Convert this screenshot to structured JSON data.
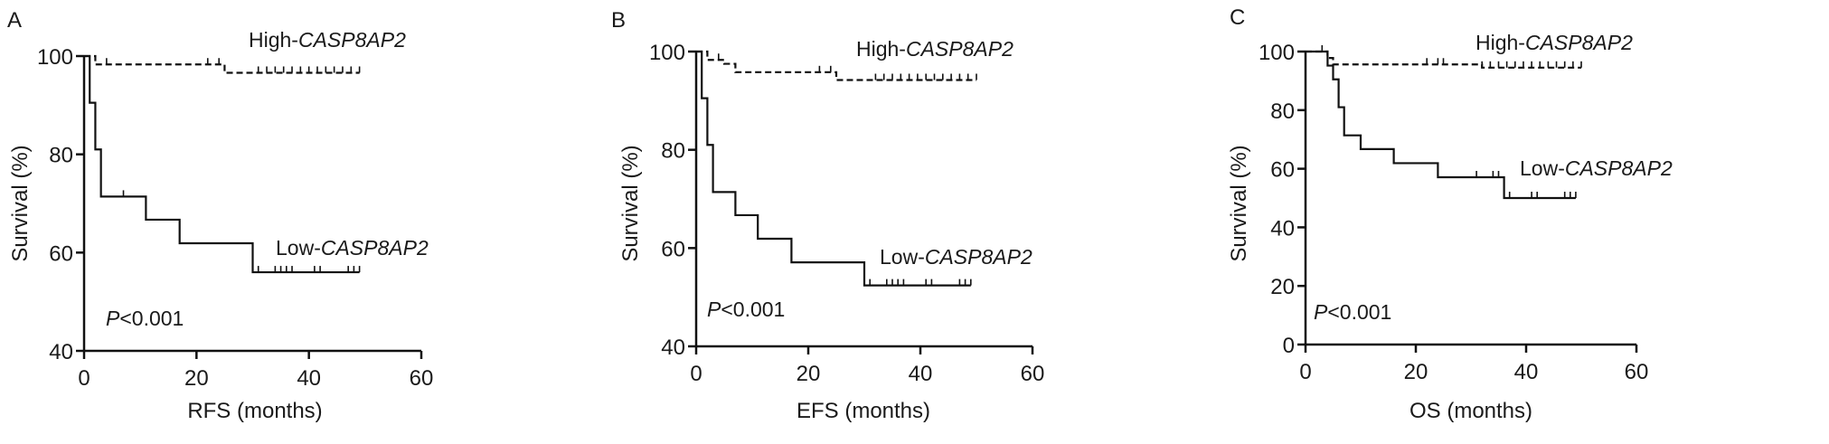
{
  "chart_data": [
    {
      "type": "line",
      "panel_label": "A",
      "xlabel": "RFS (months)",
      "ylabel": "Survival (%)",
      "xlim": [
        0,
        60
      ],
      "ylim": [
        40,
        100
      ],
      "xticks": [
        0,
        20,
        40,
        60
      ],
      "yticks": [
        40,
        60,
        80,
        100
      ],
      "annotation_p": "P",
      "annotation_value": "<0.001",
      "series": [
        {
          "name_prefix": "High-",
          "name_gene": "CASP8AP2",
          "style": "dashed",
          "steps": [
            [
              2,
              98.3
            ],
            [
              25,
              96.6
            ]
          ],
          "end": 49,
          "censored": [
            4,
            22,
            24,
            31,
            32.5,
            34,
            35.5,
            37,
            38.5,
            40,
            41.5,
            43,
            44.5,
            46,
            47.5,
            49
          ]
        },
        {
          "name_prefix": "Low-",
          "name_gene": "CASP8AP2",
          "style": "solid",
          "steps": [
            [
              1,
              90.5
            ],
            [
              2,
              81
            ],
            [
              3,
              71.4
            ],
            [
              11,
              66.7
            ],
            [
              17,
              61.9
            ],
            [
              30,
              56
            ]
          ],
          "end": 49,
          "censored": [
            7,
            31,
            34,
            35,
            36,
            37,
            41,
            42,
            47,
            48,
            49
          ]
        }
      ]
    },
    {
      "type": "line",
      "panel_label": "B",
      "xlabel": "EFS (months)",
      "ylabel": "Survival (%)",
      "xlim": [
        0,
        60
      ],
      "ylim": [
        40,
        100
      ],
      "xticks": [
        0,
        20,
        40,
        60
      ],
      "yticks": [
        40,
        60,
        80,
        100
      ],
      "annotation_p": "P",
      "annotation_value": "<0.001",
      "series": [
        {
          "name_prefix": "High-",
          "name_gene": "CASP8AP2",
          "style": "dashed",
          "steps": [
            [
              2,
              98.3
            ],
            [
              5,
              97.5
            ],
            [
              7,
              95.8
            ],
            [
              25,
              94.2
            ]
          ],
          "end": 50,
          "censored": [
            4,
            22,
            24,
            32,
            33.5,
            35,
            36.5,
            38,
            39.5,
            41,
            42.5,
            44,
            45.5,
            47,
            48.5,
            50
          ]
        },
        {
          "name_prefix": "Low-",
          "name_gene": "CASP8AP2",
          "style": "solid",
          "steps": [
            [
              1,
              90.5
            ],
            [
              2,
              81
            ],
            [
              3,
              71.4
            ],
            [
              7,
              66.7
            ],
            [
              11,
              61.9
            ],
            [
              17,
              57.1
            ],
            [
              30,
              52.4
            ]
          ],
          "end": 49,
          "censored": [
            31,
            34,
            35,
            36,
            37,
            41,
            42,
            47,
            48,
            49
          ]
        }
      ]
    },
    {
      "type": "line",
      "panel_label": "C",
      "xlabel": "OS (months)",
      "ylabel": "Survival (%)",
      "xlim": [
        0,
        60
      ],
      "ylim": [
        0,
        100
      ],
      "xticks": [
        0,
        20,
        40,
        60
      ],
      "yticks": [
        0,
        20,
        40,
        60,
        80,
        100
      ],
      "annotation_p": "P",
      "annotation_value": "<0.001",
      "series": [
        {
          "name_prefix": "High-",
          "name_gene": "CASP8AP2",
          "style": "dashed",
          "steps": [
            [
              4,
              97.8
            ],
            [
              5,
              95.6
            ],
            [
              32,
              94.5
            ]
          ],
          "end": 50,
          "censored": [
            3,
            22,
            24,
            25,
            32,
            33.5,
            35,
            36.5,
            38,
            39.5,
            41,
            42.5,
            44,
            45.5,
            47,
            48.5,
            50
          ]
        },
        {
          "name_prefix": "Low-",
          "name_gene": "CASP8AP2",
          "style": "solid",
          "steps": [
            [
              4,
              95.2
            ],
            [
              5,
              90.5
            ],
            [
              6,
              81
            ],
            [
              7,
              71.4
            ],
            [
              10,
              66.7
            ],
            [
              16,
              61.9
            ],
            [
              24,
              57.1
            ],
            [
              36,
              50
            ]
          ],
          "end": 49,
          "censored": [
            31,
            34,
            35,
            37,
            41,
            42,
            47,
            48,
            49
          ]
        }
      ]
    }
  ]
}
